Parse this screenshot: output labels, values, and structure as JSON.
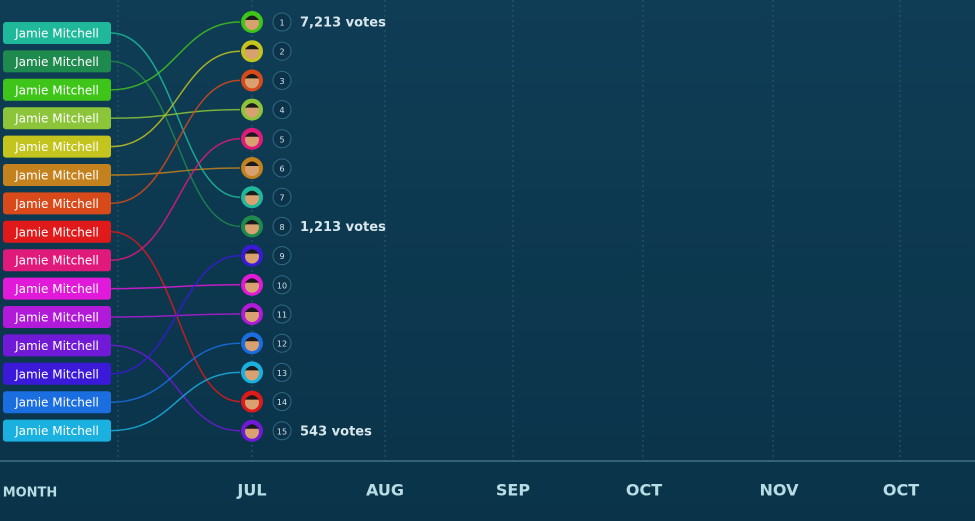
{
  "rows": [
    {
      "name": "Jamie Mitchell",
      "color": "#1fb89a",
      "rank": 7
    },
    {
      "name": "Jamie Mitchell",
      "color": "#1f8a4e",
      "rank": 8,
      "votes": "1,213 votes"
    },
    {
      "name": "Jamie Mitchell",
      "color": "#3fc41a",
      "rank": 1,
      "votes": "7,213 votes"
    },
    {
      "name": "Jamie Mitchell",
      "color": "#8cc43a",
      "rank": 4
    },
    {
      "name": "Jamie Mitchell",
      "color": "#c4c41f",
      "rank": 2
    },
    {
      "name": "Jamie Mitchell",
      "color": "#c4821f",
      "rank": 6
    },
    {
      "name": "Jamie Mitchell",
      "color": "#d84a1a",
      "rank": 3
    },
    {
      "name": "Jamie Mitchell",
      "color": "#e01a1a",
      "rank": 14
    },
    {
      "name": "Jamie Mitchell",
      "color": "#e01a7a",
      "rank": 5
    },
    {
      "name": "Jamie Mitchell",
      "color": "#e01ad8",
      "rank": 10
    },
    {
      "name": "Jamie Mitchell",
      "color": "#b01ad8",
      "rank": 11
    },
    {
      "name": "Jamie Mitchell",
      "color": "#701ad8",
      "rank": 15,
      "votes": "543 votes"
    },
    {
      "name": "Jamie Mitchell",
      "color": "#3a1ad8",
      "rank": 9
    },
    {
      "name": "Jamie Mitchell",
      "color": "#1a6ee0",
      "rank": 12
    },
    {
      "name": "Jamie Mitchell",
      "color": "#1ab0e0",
      "rank": 13
    }
  ],
  "axis": {
    "label": "MONTH",
    "months": [
      "JUL",
      "AUG",
      "SEP",
      "OCT",
      "NOV",
      "OCT"
    ]
  }
}
